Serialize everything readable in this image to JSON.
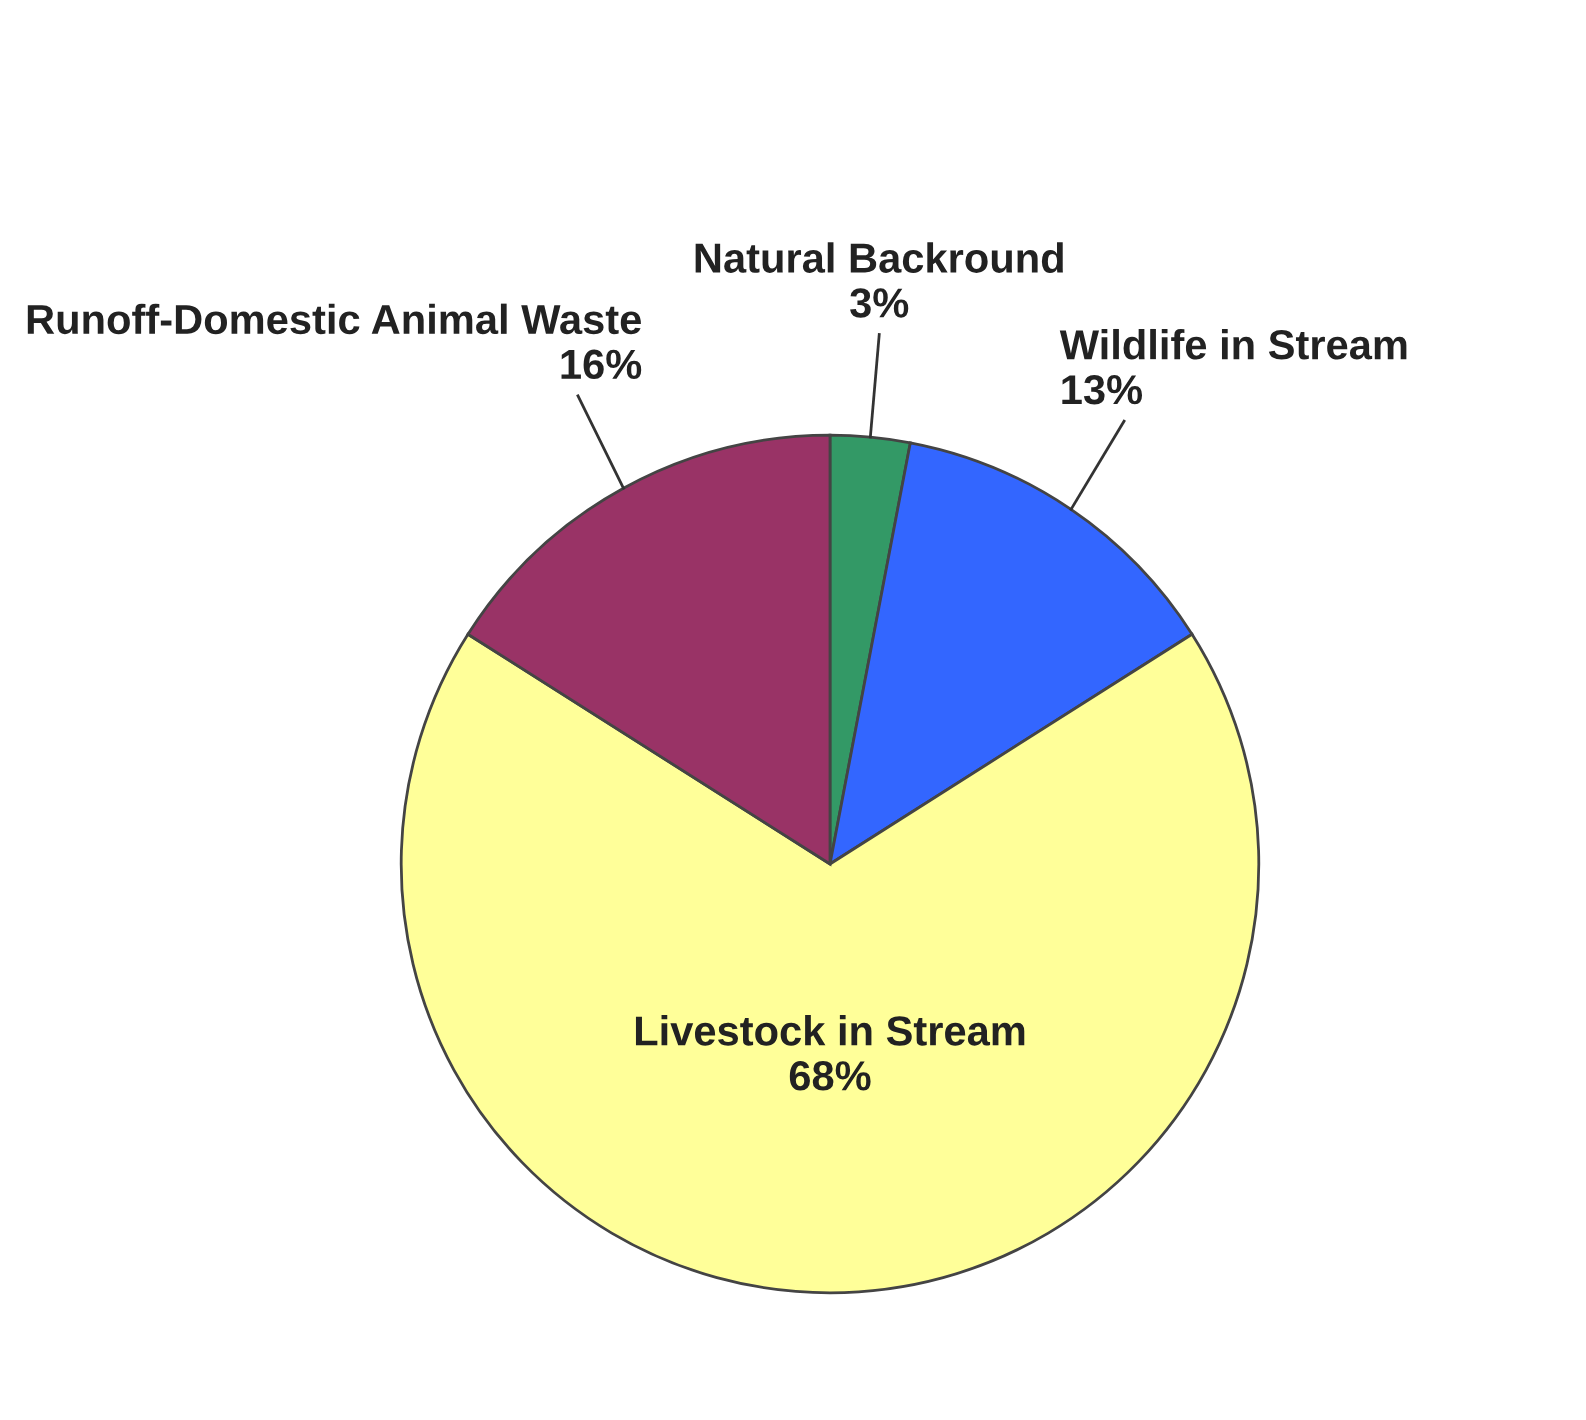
{
  "chart_data": {
    "type": "pie",
    "categories": [
      "Natural Backround",
      "Wildlife in Stream",
      "Livestock in Stream",
      "Runoff-Domestic Animal Waste"
    ],
    "values": [
      3,
      13,
      68,
      16
    ],
    "value_labels": [
      "3%",
      "13%",
      "68%",
      "16%"
    ],
    "colors": [
      "#339966",
      "#3366ff",
      "#ffff99",
      "#993366"
    ]
  }
}
